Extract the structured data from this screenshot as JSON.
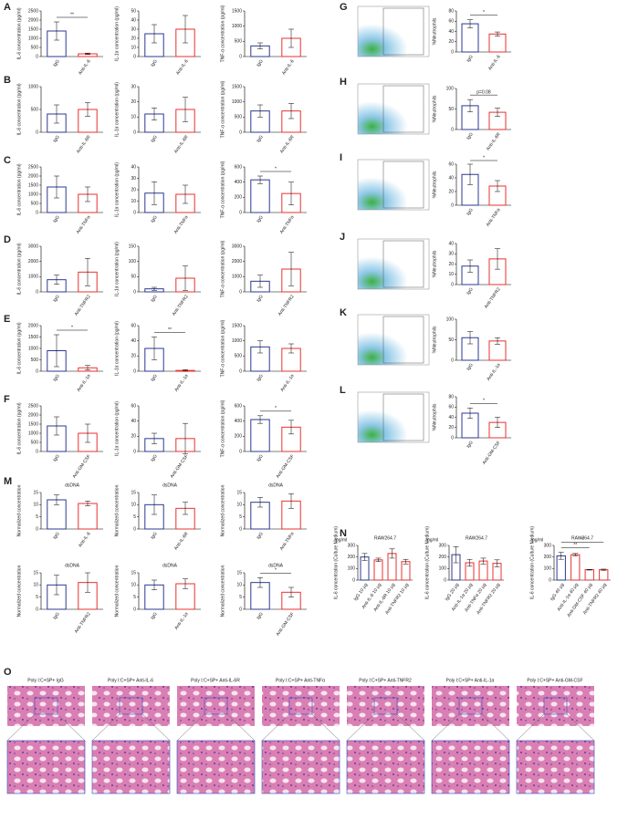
{
  "panel_labels": [
    "A",
    "B",
    "C",
    "D",
    "E",
    "F",
    "G",
    "H",
    "I",
    "J",
    "K",
    "L",
    "M",
    "N",
    "O"
  ],
  "chart_data": [
    {
      "type": "bar",
      "ylabel": "IL-6 concentration (pg/ml)",
      "categories": [
        "IgG",
        "Anti-IL-6"
      ],
      "values": [
        1400,
        150
      ],
      "errors": [
        500,
        40
      ],
      "colors": [
        "#2b3990",
        "#e8312f"
      ],
      "ylim": [
        0,
        2500
      ],
      "yticks": [
        0,
        500,
        1000,
        1500,
        2000,
        2500
      ],
      "annotations": [
        "**"
      ]
    },
    {
      "type": "bar",
      "ylabel": "IL-1α concentration (pg/ml)",
      "categories": [
        "IgG",
        "Anti-IL-6"
      ],
      "values": [
        25,
        30
      ],
      "errors": [
        10,
        15
      ],
      "colors": [
        "#2b3990",
        "#e8312f"
      ],
      "ylim": [
        0,
        50
      ],
      "yticks": [
        0,
        10,
        20,
        30,
        40,
        50
      ],
      "annotations": []
    },
    {
      "type": "bar",
      "ylabel": "TNF-α concentration (pg/ml)",
      "categories": [
        "IgG",
        "Anti-IL-6"
      ],
      "values": [
        350,
        600
      ],
      "errors": [
        100,
        300
      ],
      "colors": [
        "#2b3990",
        "#e8312f"
      ],
      "ylim": [
        0,
        1500
      ],
      "yticks": [
        0,
        500,
        1000,
        1500
      ],
      "annotations": []
    },
    {
      "type": "bar",
      "ylabel": "IL-6 concentration (pg/ml)",
      "categories": [
        "IgG",
        "Anti-IL-6R"
      ],
      "values": [
        400,
        500
      ],
      "errors": [
        200,
        150
      ],
      "colors": [
        "#2b3990",
        "#e8312f"
      ],
      "ylim": [
        0,
        1000
      ],
      "yticks": [
        0,
        500,
        1000
      ],
      "annotations": []
    },
    {
      "type": "bar",
      "ylabel": "IL-1α concentration (pg/ml)",
      "categories": [
        "IgG",
        "Anti-IL-6R"
      ],
      "values": [
        12,
        15
      ],
      "errors": [
        4,
        8
      ],
      "colors": [
        "#2b3990",
        "#e8312f"
      ],
      "ylim": [
        0,
        30
      ],
      "yticks": [
        0,
        10,
        20,
        30
      ],
      "annotations": []
    },
    {
      "type": "bar",
      "ylabel": "TNF-α concentration (pg/ml)",
      "categories": [
        "IgG",
        "Anti-IL-6R"
      ],
      "values": [
        700,
        700
      ],
      "errors": [
        200,
        250
      ],
      "colors": [
        "#2b3990",
        "#e8312f"
      ],
      "ylim": [
        0,
        1500
      ],
      "yticks": [
        0,
        500,
        1000,
        1500
      ],
      "annotations": []
    },
    {
      "type": "bar",
      "ylabel": "IL-6 concentration (pg/ml)",
      "categories": [
        "IgG",
        "Anti-TNFα"
      ],
      "values": [
        1400,
        1000
      ],
      "errors": [
        600,
        400
      ],
      "colors": [
        "#2b3990",
        "#e8312f"
      ],
      "ylim": [
        0,
        2500
      ],
      "yticks": [
        0,
        500,
        1000,
        1500,
        2000,
        2500
      ],
      "annotations": []
    },
    {
      "type": "bar",
      "ylabel": "IL-1α concentration (pg/ml)",
      "categories": [
        "IgG",
        "Anti-TNFα"
      ],
      "values": [
        17,
        16
      ],
      "errors": [
        10,
        8
      ],
      "colors": [
        "#2b3990",
        "#e8312f"
      ],
      "ylim": [
        0,
        40
      ],
      "yticks": [
        0,
        10,
        20,
        30,
        40
      ],
      "annotations": []
    },
    {
      "type": "bar",
      "ylabel": "TNF-α concentration (pg/ml)",
      "categories": [
        "IgG",
        "Anti-TNFα"
      ],
      "values": [
        430,
        250
      ],
      "errors": [
        50,
        150
      ],
      "colors": [
        "#2b3990",
        "#e8312f"
      ],
      "ylim": [
        0,
        600
      ],
      "yticks": [
        0,
        200,
        400,
        600
      ],
      "annotations": [
        "*"
      ]
    },
    {
      "type": "bar",
      "ylabel": "IL-6 concentration (pg/ml)",
      "categories": [
        "IgG",
        "Anti-TNFR2"
      ],
      "values": [
        800,
        1300
      ],
      "errors": [
        300,
        900
      ],
      "colors": [
        "#2b3990",
        "#e8312f"
      ],
      "ylim": [
        0,
        3000
      ],
      "yticks": [
        0,
        1000,
        2000,
        3000
      ],
      "annotations": []
    },
    {
      "type": "bar",
      "ylabel": "IL-1α concentration (pg/ml)",
      "categories": [
        "IgG",
        "Anti-TNFR2"
      ],
      "values": [
        10,
        45
      ],
      "errors": [
        5,
        40
      ],
      "colors": [
        "#2b3990",
        "#e8312f"
      ],
      "ylim": [
        0,
        150
      ],
      "yticks": [
        0,
        50,
        100,
        150
      ],
      "annotations": []
    },
    {
      "type": "bar",
      "ylabel": "TNF-α concentration (pg/ml)",
      "categories": [
        "IgG",
        "Anti-TNFR2"
      ],
      "values": [
        700,
        1500
      ],
      "errors": [
        400,
        1100
      ],
      "colors": [
        "#2b3990",
        "#e8312f"
      ],
      "ylim": [
        0,
        3000
      ],
      "yticks": [
        0,
        1000,
        2000,
        3000
      ],
      "annotations": []
    },
    {
      "type": "bar",
      "ylabel": "IL-6 concentration (pg/ml)",
      "categories": [
        "IgG",
        "Anti-IL-1α"
      ],
      "values": [
        900,
        150
      ],
      "errors": [
        700,
        100
      ],
      "colors": [
        "#2b3990",
        "#e8312f"
      ],
      "ylim": [
        0,
        2000
      ],
      "yticks": [
        0,
        500,
        1000,
        1500,
        2000
      ],
      "annotations": [
        "*"
      ]
    },
    {
      "type": "bar",
      "ylabel": "IL-1α concentration (pg/ml)",
      "categories": [
        "IgG",
        "Anti-IL-1α"
      ],
      "values": [
        30,
        1
      ],
      "errors": [
        15,
        1
      ],
      "colors": [
        "#2b3990",
        "#e8312f"
      ],
      "ylim": [
        0,
        60
      ],
      "yticks": [
        0,
        20,
        40,
        60
      ],
      "annotations": [
        "**"
      ]
    },
    {
      "type": "bar",
      "ylabel": "TNF-α concentration (pg/ml)",
      "categories": [
        "IgG",
        "Anti-IL-1α"
      ],
      "values": [
        800,
        750
      ],
      "errors": [
        200,
        150
      ],
      "colors": [
        "#2b3990",
        "#e8312f"
      ],
      "ylim": [
        0,
        1500
      ],
      "yticks": [
        0,
        500,
        1000,
        1500
      ],
      "annotations": []
    },
    {
      "type": "bar",
      "ylabel": "IL-6 concentration (pg/ml)",
      "categories": [
        "IgG",
        "Anti-GM-CSF"
      ],
      "values": [
        1400,
        1000
      ],
      "errors": [
        500,
        500
      ],
      "colors": [
        "#2b3990",
        "#e8312f"
      ],
      "ylim": [
        0,
        2500
      ],
      "yticks": [
        0,
        500,
        1000,
        1500,
        2000,
        2500
      ],
      "annotations": []
    },
    {
      "type": "bar",
      "ylabel": "IL-1α concentration (pg/ml)",
      "categories": [
        "IgG",
        "Anti-GM-CSF"
      ],
      "values": [
        17,
        17
      ],
      "errors": [
        7,
        20
      ],
      "colors": [
        "#2b3990",
        "#e8312f"
      ],
      "ylim": [
        0,
        60
      ],
      "yticks": [
        0,
        20,
        40,
        60
      ],
      "annotations": []
    },
    {
      "type": "bar",
      "ylabel": "TNF-α concentration (pg/ml)",
      "categories": [
        "IgG",
        "Anti-GM-CSF"
      ],
      "values": [
        420,
        320
      ],
      "errors": [
        50,
        90
      ],
      "colors": [
        "#2b3990",
        "#e8312f"
      ],
      "ylim": [
        0,
        600
      ],
      "yticks": [
        0,
        200,
        400,
        600
      ],
      "annotations": [
        "*"
      ]
    },
    {
      "type": "bar",
      "ylabel": "%Neutrophils",
      "categories": [
        "IgG",
        "Anti-IL-6"
      ],
      "values": [
        55,
        35
      ],
      "errors": [
        8,
        4
      ],
      "colors": [
        "#2b3990",
        "#e8312f"
      ],
      "ylim": [
        0,
        80
      ],
      "yticks": [
        0,
        20,
        40,
        60,
        80
      ],
      "annotations": [
        "*"
      ]
    },
    {
      "type": "bar",
      "ylabel": "%Neutrophils",
      "categories": [
        "IgG",
        "Anti-IL-6R"
      ],
      "values": [
        58,
        42
      ],
      "errors": [
        15,
        10
      ],
      "colors": [
        "#2b3990",
        "#e8312f"
      ],
      "ylim": [
        0,
        100
      ],
      "yticks": [
        0,
        50,
        100
      ],
      "annotations": [
        "p=0.08"
      ]
    },
    {
      "type": "bar",
      "ylabel": "%Neutrophils",
      "categories": [
        "IgG",
        "Anti-TNFα"
      ],
      "values": [
        45,
        28
      ],
      "errors": [
        15,
        8
      ],
      "colors": [
        "#2b3990",
        "#e8312f"
      ],
      "ylim": [
        0,
        60
      ],
      "yticks": [
        0,
        20,
        40,
        60
      ],
      "annotations": [
        "*"
      ]
    },
    {
      "type": "bar",
      "ylabel": "%Neutrophils",
      "categories": [
        "IgG",
        "Anti-TNFR2"
      ],
      "values": [
        18,
        25
      ],
      "errors": [
        6,
        10
      ],
      "colors": [
        "#2b3990",
        "#e8312f"
      ],
      "ylim": [
        0,
        40
      ],
      "yticks": [
        0,
        10,
        20,
        30,
        40
      ],
      "annotations": []
    },
    {
      "type": "bar",
      "ylabel": "%Neutrophils",
      "categories": [
        "IgG",
        "Anti-IL-1α"
      ],
      "values": [
        55,
        47
      ],
      "errors": [
        15,
        8
      ],
      "colors": [
        "#2b3990",
        "#e8312f"
      ],
      "ylim": [
        0,
        100
      ],
      "yticks": [
        0,
        50,
        100
      ],
      "annotations": []
    },
    {
      "type": "bar",
      "ylabel": "%Neutrophils",
      "categories": [
        "IgG",
        "Anti-GM-CSF"
      ],
      "values": [
        48,
        30
      ],
      "errors": [
        10,
        10
      ],
      "colors": [
        "#2b3990",
        "#e8312f"
      ],
      "ylim": [
        0,
        80
      ],
      "yticks": [
        0,
        20,
        40,
        60,
        80
      ],
      "annotations": [
        "*"
      ]
    },
    {
      "type": "bar",
      "title": "dsDNA",
      "ylabel": "Normalized concentration",
      "categories": [
        "IgG",
        "Anti-IL-6"
      ],
      "values": [
        12,
        10.5
      ],
      "errors": [
        2,
        1
      ],
      "colors": [
        "#2b3990",
        "#e8312f"
      ],
      "ylim": [
        0,
        15
      ],
      "yticks": [
        0,
        5,
        10,
        15
      ],
      "annotations": []
    },
    {
      "type": "bar",
      "title": "dsDNA",
      "ylabel": "Normalized concentration",
      "categories": [
        "IgG",
        "Anti-IL-6R"
      ],
      "values": [
        10,
        8.5
      ],
      "errors": [
        4,
        2.5
      ],
      "colors": [
        "#2b3990",
        "#e8312f"
      ],
      "ylim": [
        0,
        15
      ],
      "yticks": [
        0,
        5,
        10,
        15
      ],
      "annotations": []
    },
    {
      "type": "bar",
      "title": "dsDNA",
      "ylabel": "Normalized concentration",
      "categories": [
        "IgG",
        "Anti-TNFα"
      ],
      "values": [
        11,
        11.5
      ],
      "errors": [
        2,
        3
      ],
      "colors": [
        "#2b3990",
        "#e8312f"
      ],
      "ylim": [
        0,
        15
      ],
      "yticks": [
        0,
        5,
        10,
        15
      ],
      "annotations": []
    },
    {
      "type": "bar",
      "title": "dsDNA",
      "ylabel": "Normalized concentration",
      "categories": [
        "IgG",
        "Anti-TNFR2"
      ],
      "values": [
        10,
        11
      ],
      "errors": [
        4,
        4
      ],
      "colors": [
        "#2b3990",
        "#e8312f"
      ],
      "ylim": [
        0,
        15
      ],
      "yticks": [
        0,
        5,
        10,
        15
      ],
      "annotations": []
    },
    {
      "type": "bar",
      "title": "dsDNA",
      "ylabel": "Normalized concentration",
      "categories": [
        "IgG",
        "Anti-IL-1α"
      ],
      "values": [
        10,
        10.5
      ],
      "errors": [
        2,
        2
      ],
      "colors": [
        "#2b3990",
        "#e8312f"
      ],
      "ylim": [
        0,
        15
      ],
      "yticks": [
        0,
        5,
        10,
        15
      ],
      "annotations": []
    },
    {
      "type": "bar",
      "title": "dsDNA",
      "ylabel": "Normalized concentration",
      "categories": [
        "IgG",
        "Anti-GM-CSF"
      ],
      "values": [
        11,
        7
      ],
      "errors": [
        2,
        2
      ],
      "colors": [
        "#2b3990",
        "#e8312f"
      ],
      "ylim": [
        0,
        15
      ],
      "yticks": [
        0,
        5,
        10,
        15
      ],
      "annotations": [
        "*"
      ]
    },
    {
      "type": "bar",
      "title": "RAW264.7",
      "unit": "pg/ml",
      "ylabel": "IL-6 concentration (Culture Medium)",
      "categories": [
        "IgG 10 μg",
        "Anti-IL-6 10 μg",
        "Anti-IL-6R 10 μg",
        "Anti-TNFR2 10 μg"
      ],
      "values": [
        200,
        175,
        230,
        160
      ],
      "errors": [
        30,
        15,
        40,
        20
      ],
      "colors": [
        "#2b3990",
        "#e8312f",
        "#e8312f",
        "#e8312f"
      ],
      "ylim": [
        0,
        300
      ],
      "yticks": [
        0,
        100,
        200,
        300
      ],
      "annotations": []
    },
    {
      "type": "bar",
      "title": "RAW264.7",
      "unit": "pg/ml",
      "ylabel": "IL-6 concentration (Culture Medium)",
      "categories": [
        "IgG 20 μg",
        "Anti-IL-1α 20 μg",
        "Anti-TNFα 20 μg",
        "Anti-TNFR2 20 μg"
      ],
      "values": [
        220,
        150,
        165,
        145
      ],
      "errors": [
        70,
        30,
        25,
        30
      ],
      "colors": [
        "#2b3990",
        "#e8312f",
        "#e8312f",
        "#e8312f"
      ],
      "ylim": [
        0,
        300
      ],
      "yticks": [
        0,
        100,
        200,
        300
      ],
      "annotations": []
    },
    {
      "type": "bar",
      "title": "RAW264.7",
      "unit": "pg/ml",
      "ylabel": "IL-6 concentration (Culture Medium)",
      "categories": [
        "IgG 40 μg",
        "Anti-IL-1α 40 μg",
        "Anti-GM-CSF 40 μg",
        "Anti-TNFR2 40 μg"
      ],
      "values": [
        210,
        220,
        90,
        90
      ],
      "errors": [
        30,
        10,
        3,
        5
      ],
      "colors": [
        "#2b3990",
        "#e8312f",
        "#e8312f",
        "#e8312f"
      ],
      "ylim": [
        0,
        300
      ],
      "yticks": [
        0,
        100,
        200,
        300
      ],
      "annotations": [
        "**",
        "**"
      ]
    }
  ],
  "histology": {
    "labels": [
      "Poly I:C+SP+ IgG",
      "Poly I:C+SP+ Anti-IL-6",
      "Poly I:C+SP+ Anti-IL-6R",
      "Poly I:C+SP+ Anti-TNFα",
      "Poly I:C+SP+ Anti-TNFR2",
      "Poly I:C+SP+ Anti-IL-1α",
      "Poly I:C+SP+ Anti-GM-CSF"
    ]
  }
}
